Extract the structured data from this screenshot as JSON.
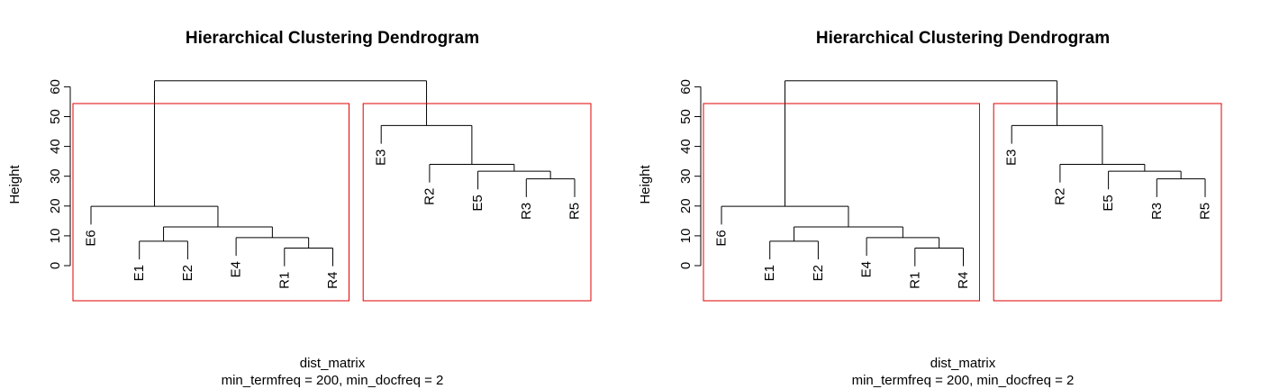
{
  "chart_data": [
    {
      "type": "dendrogram",
      "title": "Hierarchical Clustering Dendrogram",
      "ylabel": "Height",
      "xlabel": "dist_matrix",
      "sub": "min_termfreq = 200, min_docfreq = 2",
      "y_ticks": [
        0,
        10,
        20,
        30,
        40,
        50,
        60
      ],
      "ylim": [
        0,
        62
      ],
      "leaves": [
        "E6",
        "E1",
        "E2",
        "E4",
        "R1",
        "R4",
        "E3",
        "R2",
        "E5",
        "R3",
        "R5"
      ],
      "merges": [
        {
          "left": "R1",
          "right": "R4",
          "height": 5.9
        },
        {
          "left": "E1",
          "right": "E2",
          "height": 8.2
        },
        {
          "left": "E4",
          "right": 1,
          "height": 9.4
        },
        {
          "left": 2,
          "right": 3,
          "height": 13.0
        },
        {
          "left": "E6",
          "right": 4,
          "height": 19.9
        },
        {
          "left": "R3",
          "right": "R5",
          "height": 29.1
        },
        {
          "left": "E5",
          "right": 6,
          "height": 31.7
        },
        {
          "left": "R2",
          "right": 7,
          "height": 34.0
        },
        {
          "left": "E3",
          "right": 8,
          "height": 47.0
        },
        {
          "left": 5,
          "right": 9,
          "height": 62.0
        }
      ],
      "rect_clusters": [
        [
          "E6",
          "E1",
          "E2",
          "E4",
          "R1",
          "R4"
        ],
        [
          "E3",
          "R2",
          "E5",
          "R3",
          "R5"
        ]
      ],
      "rect_border_color": "#df0000"
    },
    {
      "type": "dendrogram",
      "title": "Hierarchical Clustering Dendrogram",
      "ylabel": "Height",
      "xlabel": "dist_matrix",
      "sub": "min_termfreq = 200, min_docfreq = 2",
      "y_ticks": [
        0,
        10,
        20,
        30,
        40,
        50,
        60
      ],
      "ylim": [
        0,
        62
      ],
      "leaves": [
        "E6",
        "E1",
        "E2",
        "E4",
        "R1",
        "R4",
        "E3",
        "R2",
        "E5",
        "R3",
        "R5"
      ],
      "merges": [
        {
          "left": "R1",
          "right": "R4",
          "height": 5.9
        },
        {
          "left": "E1",
          "right": "E2",
          "height": 8.2
        },
        {
          "left": "E4",
          "right": 1,
          "height": 9.4
        },
        {
          "left": 2,
          "right": 3,
          "height": 13.0
        },
        {
          "left": "E6",
          "right": 4,
          "height": 19.9
        },
        {
          "left": "R3",
          "right": "R5",
          "height": 29.1
        },
        {
          "left": "E5",
          "right": 6,
          "height": 31.7
        },
        {
          "left": "R2",
          "right": 7,
          "height": 34.0
        },
        {
          "left": "E3",
          "right": 8,
          "height": 47.0
        },
        {
          "left": 5,
          "right": 9,
          "height": 62.0
        }
      ],
      "rect_clusters": [
        [
          "E6",
          "E1",
          "E2",
          "E4",
          "R1",
          "R4"
        ],
        [
          "E3",
          "R2",
          "E5",
          "R3",
          "R5"
        ]
      ],
      "rect_border_color": "#df0000"
    }
  ]
}
